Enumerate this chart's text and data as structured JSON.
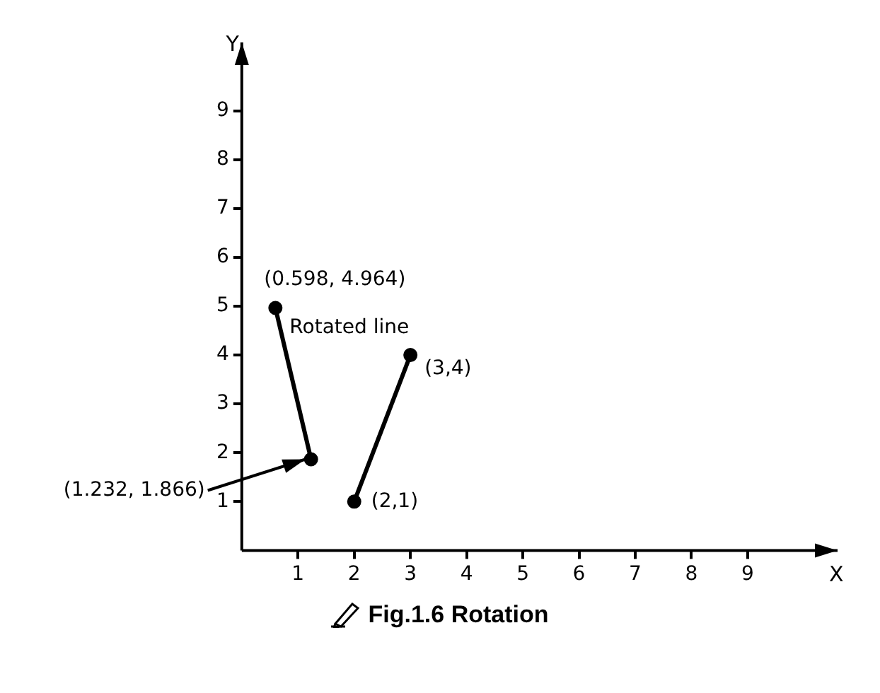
{
  "chart_data": {
    "type": "line",
    "title": "Fig.1.6  Rotation",
    "xlabel": "X",
    "ylabel": "Y",
    "xlim": [
      0,
      10.6
    ],
    "ylim": [
      0,
      10.4
    ],
    "xticks": [
      1,
      2,
      3,
      4,
      5,
      6,
      7,
      8,
      9
    ],
    "yticks": [
      1,
      2,
      3,
      4,
      5,
      6,
      7,
      8,
      9
    ],
    "grid": false,
    "legend": false,
    "marker": "circle",
    "line_style": "solid",
    "series": [
      {
        "name": "Rotated line",
        "color": "#000000",
        "x": [
          0.598,
          1.232
        ],
        "values": [
          4.964,
          1.866
        ]
      },
      {
        "color": "#000000",
        "x": [
          2,
          3
        ],
        "values": [
          1,
          4
        ]
      }
    ],
    "annotations": [
      {
        "text": "(0.598, 4.964)",
        "x": 0.598,
        "y": 4.964
      },
      {
        "text": "(3,4)",
        "x": 3,
        "y": 4
      },
      {
        "text": "(2,1)",
        "x": 2,
        "y": 1
      },
      {
        "text": "(1.232, 1.866)",
        "x": 1.232,
        "y": 1.866
      }
    ]
  }
}
